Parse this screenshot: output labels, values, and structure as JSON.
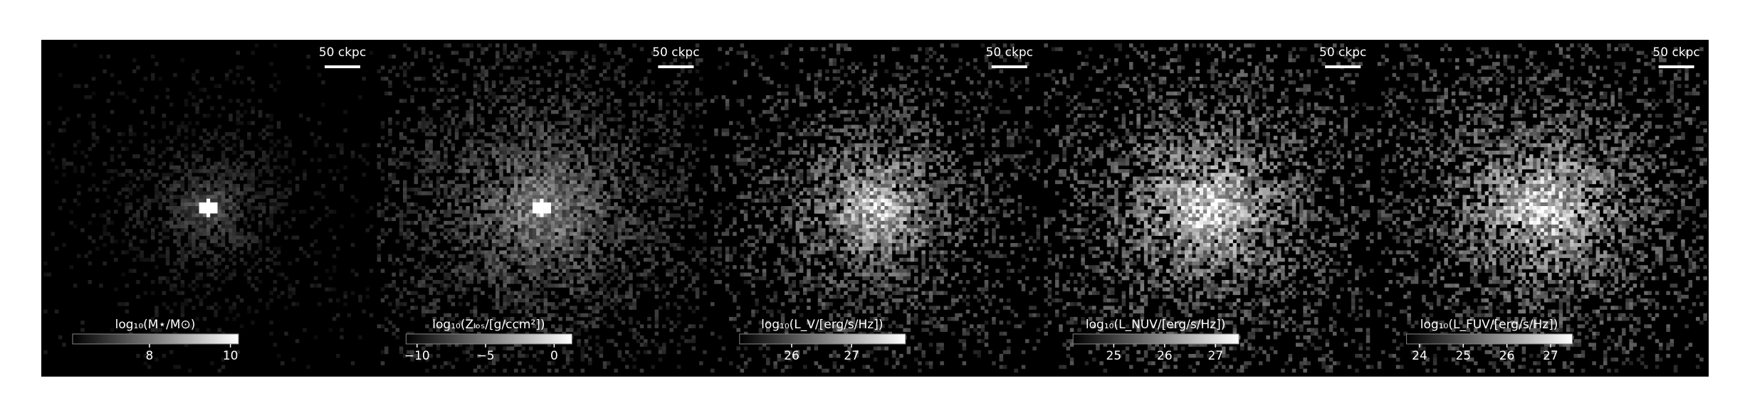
{
  "chart_data": [
    {
      "type": "image",
      "scale_bar_label": "50 ckpc",
      "colorbar_label": "log₁₀(M⋆/M⊙)",
      "clim": [
        6.1,
        10.2
      ],
      "cticks": [
        8,
        10
      ]
    },
    {
      "type": "image",
      "scale_bar_label": "50 ckpc",
      "colorbar_label": "log₁₀(Zₗₒₛ/[g/ccm²])",
      "clim": [
        -10.8,
        1.3
      ],
      "cticks": [
        {
          "value": -10,
          "label": "−10"
        },
        {
          "value": -5,
          "label": "−5"
        },
        0
      ]
    },
    {
      "type": "image",
      "scale_bar_label": "50 ckpc",
      "colorbar_label": "log₁₀(L_V/[erg/s/Hz])",
      "clim": [
        25.13,
        27.9
      ],
      "cticks": [
        26,
        27
      ]
    },
    {
      "type": "image",
      "scale_bar_label": "50 ckpc",
      "colorbar_label": "log₁₀(L_NUV/[erg/s/Hz])",
      "clim": [
        24.2,
        27.46
      ],
      "cticks": [
        25,
        26,
        27
      ]
    },
    {
      "type": "image",
      "scale_bar_label": "50 ckpc",
      "colorbar_label": "log₁₀(L_FUV/[erg/s/Hz])",
      "clim": [
        23.7,
        27.5
      ],
      "cticks": [
        24,
        25,
        26,
        27
      ]
    }
  ]
}
